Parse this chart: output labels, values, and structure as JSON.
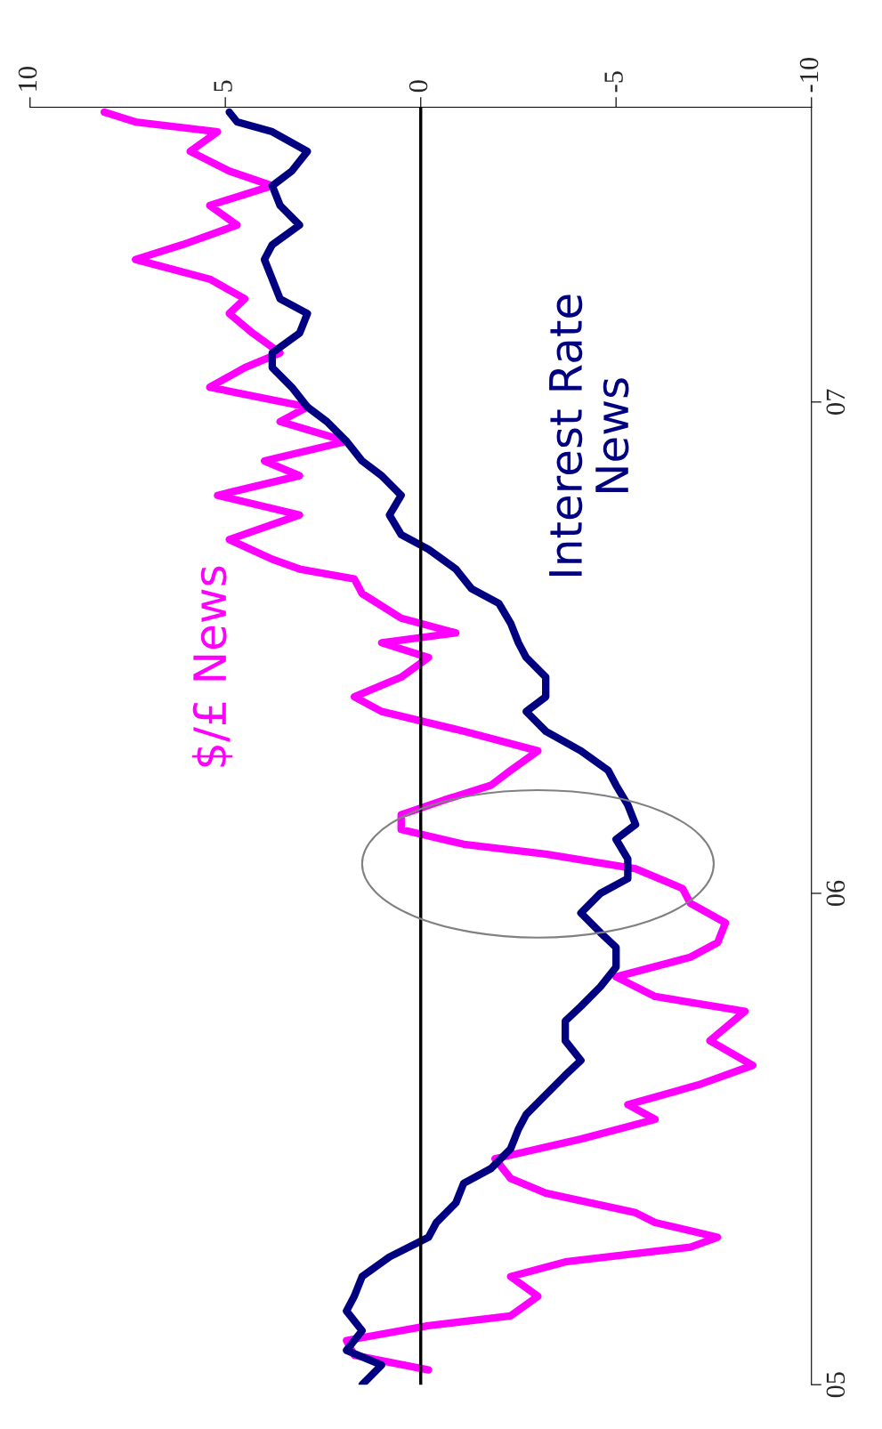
{
  "chart_data": {
    "type": "line",
    "orientation": "horizontal",
    "legend": false,
    "grid": false,
    "marker": "none",
    "line_style": "solid",
    "xlim": [
      10,
      -10
    ],
    "xticks": [
      10,
      5,
      0,
      {
        "value": -5,
        "label": "-5"
      },
      {
        "value": -10,
        "label": "-10"
      }
    ],
    "ylim": [
      5,
      7.6
    ],
    "yticks": [
      {
        "value": 5,
        "label": "05"
      },
      {
        "value": 6,
        "label": "06"
      },
      {
        "value": 7,
        "label": "07"
      }
    ],
    "ref_lines": [
      {
        "axis": "x",
        "value": 0,
        "color": "#000000"
      }
    ],
    "series": [
      {
        "name": "$/£ News",
        "color": "#ff00ff",
        "x": [
          5.03,
          5.06,
          5.09,
          5.12,
          5.14,
          5.18,
          5.22,
          5.25,
          5.28,
          5.3,
          5.33,
          5.35,
          5.39,
          5.42,
          5.46,
          5.5,
          5.54,
          5.57,
          5.61,
          5.65,
          5.7,
          5.76,
          5.79,
          5.83,
          5.87,
          5.9,
          5.94,
          5.98,
          6.01,
          6.05,
          6.08,
          6.1,
          6.13,
          6.16,
          6.19,
          6.22,
          6.25,
          6.29,
          6.33,
          6.37,
          6.4,
          6.44,
          6.48,
          6.51,
          6.53,
          6.56,
          6.61,
          6.64,
          6.66,
          6.68,
          6.72,
          6.77,
          6.81,
          6.85,
          6.88,
          6.92,
          6.96,
          6.99,
          7.03,
          7.07,
          7.1,
          7.14,
          7.18,
          7.21,
          7.25,
          7.29,
          7.32,
          7.36,
          7.4,
          7.44,
          7.47,
          7.51,
          7.55,
          7.57,
          7.59
        ],
        "values": [
          -0.2,
          1.7,
          1.9,
          -0.2,
          -2.3,
          -3.0,
          -2.3,
          -3.7,
          -6.9,
          -7.6,
          -6.0,
          -5.5,
          -3.2,
          -2.3,
          -1.9,
          -4.1,
          -6.0,
          -5.3,
          -7.1,
          -8.5,
          -7.4,
          -8.3,
          -6.0,
          -5.0,
          -6.9,
          -7.6,
          -7.8,
          -6.9,
          -6.7,
          -5.5,
          -3.2,
          -1.1,
          0.5,
          0.5,
          -0.6,
          -1.8,
          -2.3,
          -3.0,
          -1.1,
          1.0,
          1.7,
          0.5,
          -0.2,
          1.0,
          -0.9,
          0.5,
          1.5,
          1.7,
          3.1,
          3.8,
          4.9,
          3.1,
          5.2,
          3.1,
          4.0,
          1.9,
          3.6,
          2.9,
          5.4,
          4.5,
          3.6,
          4.3,
          4.9,
          4.5,
          5.4,
          7.3,
          6.1,
          4.7,
          5.4,
          3.8,
          4.9,
          5.9,
          5.2,
          7.3,
          8.1
        ]
      },
      {
        "name": "Interest Rate News",
        "color": "#000080",
        "x": [
          5.0,
          5.04,
          5.07,
          5.11,
          5.15,
          5.18,
          5.22,
          5.26,
          5.3,
          5.33,
          5.37,
          5.41,
          5.44,
          5.48,
          5.52,
          5.55,
          5.59,
          5.63,
          5.66,
          5.7,
          5.74,
          5.77,
          5.81,
          5.85,
          5.89,
          5.92,
          5.96,
          6.0,
          6.03,
          6.07,
          6.11,
          6.14,
          6.18,
          6.22,
          6.25,
          6.29,
          6.33,
          6.37,
          6.4,
          6.44,
          6.48,
          6.51,
          6.55,
          6.59,
          6.62,
          6.66,
          6.7,
          6.73,
          6.77,
          6.81,
          6.85,
          6.88,
          6.92,
          6.96,
          6.99,
          7.03,
          7.07,
          7.1,
          7.14,
          7.18,
          7.21,
          7.25,
          7.29,
          7.32,
          7.36,
          7.4,
          7.44,
          7.47,
          7.51,
          7.55,
          7.57,
          7.59
        ],
        "values": [
          1.5,
          1.0,
          1.9,
          1.5,
          1.9,
          1.7,
          1.5,
          0.8,
          -0.2,
          -0.4,
          -0.9,
          -1.1,
          -1.8,
          -2.3,
          -2.5,
          -2.7,
          -3.2,
          -3.7,
          -4.1,
          -3.7,
          -3.7,
          -4.1,
          -4.6,
          -5.0,
          -5.0,
          -4.6,
          -4.1,
          -4.6,
          -5.3,
          -5.3,
          -5.0,
          -5.5,
          -5.3,
          -5.0,
          -4.8,
          -4.1,
          -3.2,
          -2.7,
          -3.2,
          -3.2,
          -2.7,
          -2.5,
          -2.3,
          -2.0,
          -1.3,
          -0.9,
          -0.2,
          0.5,
          0.8,
          0.5,
          1.0,
          1.5,
          1.9,
          2.4,
          2.9,
          3.3,
          3.8,
          3.8,
          3.1,
          2.9,
          3.6,
          3.8,
          4.0,
          3.8,
          3.1,
          3.6,
          3.8,
          3.3,
          2.9,
          3.8,
          4.7,
          4.9
        ]
      }
    ]
  }
}
